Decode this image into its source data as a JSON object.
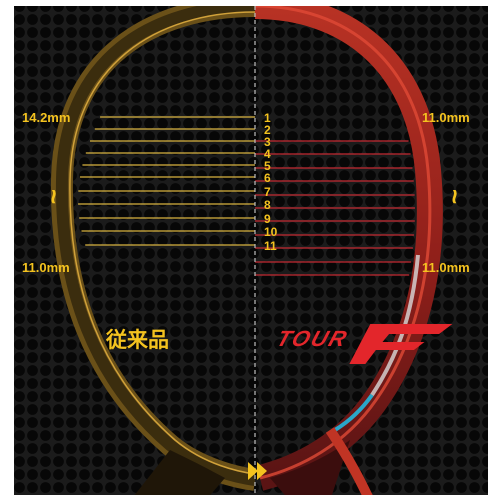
{
  "left": {
    "top_spacing": "14.2mm",
    "bottom_spacing": "11.0mm",
    "range_symbol": "~",
    "product_label": "従来品"
  },
  "right": {
    "top_spacing": "11.0mm",
    "bottom_spacing": "11.0mm",
    "range_symbol": "~",
    "logo_text": "TOUR F"
  },
  "string_numbers": [
    "1",
    "2",
    "3",
    "4",
    "5",
    "6",
    "7",
    "8",
    "9",
    "10",
    "11"
  ],
  "colors": {
    "background": "#1b1b1b",
    "hole": "#070707",
    "accent_yellow": "#f4c31f",
    "frame_left": "#6a5018",
    "frame_right": "#c03424",
    "string_left": "#d8b340",
    "string_right": "#c42a32",
    "center_line": "#bdbdbd"
  },
  "icons": {
    "center_marker": "double-chevron-right-icon",
    "range_glyph": "wave-tilde-icon"
  }
}
